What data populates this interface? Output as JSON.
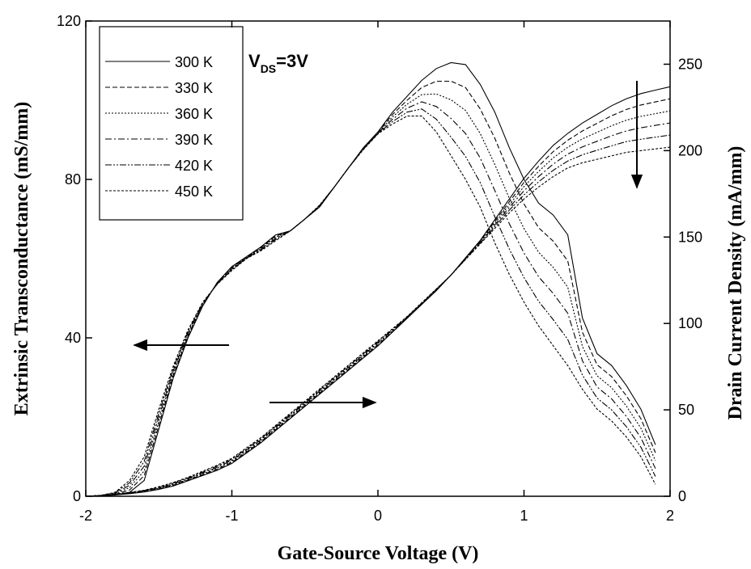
{
  "chart_data": {
    "type": "line",
    "xlabel": "Gate-Source Voltage (V)",
    "ylabel": "Extrinsic Transconductance (mS/mm)",
    "y2label": "Drain Current Density (mA/mm)",
    "annotation": [
      "V",
      "DS",
      "=3V"
    ],
    "x": [
      -2.0,
      -1.9,
      -1.8,
      -1.7,
      -1.6,
      -1.5,
      -1.4,
      -1.3,
      -1.2,
      -1.1,
      -1.0,
      -0.9,
      -0.8,
      -0.7,
      -0.6,
      -0.5,
      -0.4,
      -0.3,
      -0.2,
      -0.1,
      0,
      0.1,
      0.2,
      0.3,
      0.4,
      0.5,
      0.6,
      0.7,
      0.8,
      0.9,
      1.0,
      1.1,
      1.2,
      1.3,
      1.4,
      1.5,
      1.6,
      1.7,
      1.8,
      1.9,
      2.0
    ],
    "xlim": [
      -2,
      2
    ],
    "xticks": [
      -2,
      -1,
      0,
      1,
      2
    ],
    "ylim": [
      0,
      120
    ],
    "yticks": [
      0,
      40,
      80,
      120
    ],
    "y2lim": [
      0,
      275
    ],
    "y2ticks": [
      0,
      50,
      100,
      150,
      200,
      250
    ],
    "series": [
      {
        "name": "300 K",
        "color": "#000000",
        "dash": "none",
        "values": [
          0,
          0.1,
          0.3,
          1,
          4,
          17,
          30,
          40,
          48,
          54,
          58,
          60.5,
          63,
          66,
          67,
          70,
          73,
          78,
          83,
          88,
          92,
          97,
          101,
          105,
          108,
          109.5,
          109,
          104,
          97,
          88,
          80,
          74,
          71,
          66,
          45,
          36,
          33,
          28,
          22,
          13,
          null
        ]
      },
      {
        "name": "330 K",
        "color": "#000000",
        "dash": "6,3",
        "values": [
          0,
          0.12,
          0.44,
          1.6,
          5.2,
          18,
          30.6,
          40.4,
          48.2,
          53.9,
          57.8,
          60.4,
          62.8,
          65.7,
          67,
          70,
          73.1,
          78,
          83,
          87.9,
          91.9,
          96.4,
          100,
          103.2,
          104.8,
          104.8,
          103.2,
          97.8,
          90.4,
          81.6,
          73.8,
          67.8,
          64.4,
          59.4,
          41.4,
          33.2,
          30.2,
          25.4,
          19.6,
          11,
          null
        ]
      },
      {
        "name": "360 K",
        "color": "#000000",
        "dash": "2,2",
        "values": [
          0,
          0.14,
          0.58,
          2.2,
          6.4,
          19,
          31.2,
          40.8,
          48.4,
          53.8,
          57.6,
          60.3,
          62.6,
          65.4,
          67,
          70,
          73.2,
          78,
          83,
          87.8,
          91.8,
          95.8,
          99,
          101.4,
          101.6,
          100.1,
          97.4,
          91.6,
          83.8,
          75.2,
          67.6,
          61.6,
          57.8,
          52.8,
          37.8,
          30.4,
          27.4,
          22.8,
          17.2,
          9,
          null
        ]
      },
      {
        "name": "390 K",
        "color": "#000000",
        "dash": "8,3,2,3",
        "values": [
          0,
          0.16,
          0.72,
          2.8,
          7.6,
          20,
          31.8,
          41.2,
          48.6,
          53.7,
          57.4,
          60.2,
          62.4,
          65.1,
          67,
          70,
          73.3,
          78,
          83,
          87.7,
          91.7,
          95.2,
          98,
          99.6,
          98.4,
          95.4,
          91.6,
          85.4,
          77.2,
          68.8,
          61.4,
          55.4,
          51.2,
          46.2,
          34.2,
          27.6,
          24.6,
          20.2,
          14.8,
          7,
          null
        ]
      },
      {
        "name": "420 K",
        "color": "#000000",
        "dash": "8,2,2,2,2,2",
        "values": [
          0,
          0.18,
          0.86,
          3.4,
          8.8,
          21,
          32.4,
          41.6,
          48.8,
          53.6,
          57.2,
          60.1,
          62.2,
          64.8,
          67,
          70,
          73.4,
          78,
          83,
          87.6,
          91.6,
          94.6,
          97,
          97.8,
          95.2,
          90.7,
          85.8,
          79.2,
          70.6,
          62.4,
          55.2,
          49.2,
          44.6,
          39.6,
          30.6,
          24.8,
          21.8,
          17.6,
          12.4,
          5,
          null
        ]
      },
      {
        "name": "450 K",
        "color": "#000000",
        "dash": "3,2",
        "values": [
          0,
          0.2,
          1,
          4,
          10,
          22,
          33,
          42,
          49,
          53.5,
          57,
          60,
          62,
          64.5,
          67,
          70,
          73.5,
          78,
          83,
          87.5,
          91.5,
          94,
          96,
          96,
          92,
          86,
          80,
          73,
          64,
          56,
          49,
          43,
          38,
          33,
          27,
          22,
          19,
          15,
          10,
          3,
          null
        ]
      },
      {
        "axis": "y2",
        "color": "#000000",
        "dash": "none",
        "values": [
          0,
          0.3,
          0.8,
          1.5,
          2.5,
          4,
          6,
          9,
          12,
          15,
          19,
          25,
          31,
          38,
          45,
          52,
          59,
          66,
          73,
          80,
          87,
          95,
          103,
          111,
          119,
          128,
          138,
          148,
          160,
          172,
          184,
          194,
          203,
          210,
          216,
          221,
          226,
          230,
          233,
          235,
          237
        ]
      },
      {
        "axis": "y2",
        "color": "#000000",
        "dash": "6,3",
        "values": [
          0,
          0.34,
          0.88,
          1.64,
          2.7,
          4.3,
          6.4,
          9.4,
          12.5,
          15.6,
          19.6,
          25.6,
          31.6,
          38.6,
          45.6,
          52.6,
          59.6,
          66.6,
          73.6,
          80.6,
          87.6,
          95.4,
          103.2,
          111.2,
          119.2,
          128,
          137.8,
          147.6,
          159,
          170.4,
          181.6,
          191,
          199.4,
          206,
          211.4,
          215.8,
          220.2,
          223.8,
          226.4,
          228.2,
          230
        ]
      },
      {
        "axis": "y2",
        "color": "#000000",
        "dash": "2,2",
        "values": [
          0,
          0.38,
          0.96,
          1.78,
          2.9,
          4.6,
          6.8,
          9.8,
          13,
          16.2,
          20.2,
          26.2,
          32.2,
          39.2,
          46.2,
          53.2,
          60.2,
          67.2,
          74.2,
          81.2,
          88.2,
          95.8,
          103.4,
          111.4,
          119.4,
          128,
          137.6,
          147.2,
          158,
          168.8,
          179.2,
          188,
          195.8,
          202,
          206.8,
          210.6,
          214.4,
          217.6,
          219.8,
          221.4,
          223
        ]
      },
      {
        "axis": "y2",
        "color": "#000000",
        "dash": "8,3,2,3",
        "values": [
          0,
          0.42,
          1.04,
          1.92,
          3.1,
          4.9,
          7.2,
          10.2,
          13.5,
          16.8,
          20.8,
          26.8,
          32.8,
          39.8,
          46.8,
          53.8,
          60.8,
          67.8,
          74.8,
          81.8,
          88.8,
          96.2,
          103.6,
          111.6,
          119.6,
          128,
          137.4,
          146.8,
          157,
          167.2,
          176.8,
          185,
          192.2,
          198,
          202.2,
          205.4,
          208.6,
          211.4,
          213.2,
          214.6,
          216
        ]
      },
      {
        "axis": "y2",
        "color": "#000000",
        "dash": "8,2,2,2,2,2",
        "values": [
          0,
          0.46,
          1.12,
          2.06,
          3.3,
          5.2,
          7.6,
          10.6,
          14,
          17.4,
          21.4,
          27.4,
          33.4,
          40.4,
          47.4,
          54.4,
          61.4,
          68.4,
          75.4,
          82.4,
          89.4,
          96.6,
          103.8,
          111.8,
          119.8,
          128,
          137.2,
          146.4,
          156,
          165.6,
          174.4,
          182,
          188.6,
          194,
          197.6,
          200.2,
          202.8,
          205.2,
          206.6,
          207.8,
          209
        ]
      },
      {
        "axis": "y2",
        "color": "#000000",
        "dash": "3,2",
        "values": [
          0,
          0.5,
          1.2,
          2.2,
          3.5,
          5.5,
          8,
          11,
          14.5,
          18,
          22,
          28,
          34,
          41,
          48,
          55,
          62,
          69,
          76,
          83,
          90,
          97,
          104,
          112,
          120,
          128,
          137,
          146,
          155,
          164,
          172,
          179,
          185,
          190,
          193,
          195,
          197,
          199,
          200,
          201,
          202
        ]
      }
    ]
  }
}
